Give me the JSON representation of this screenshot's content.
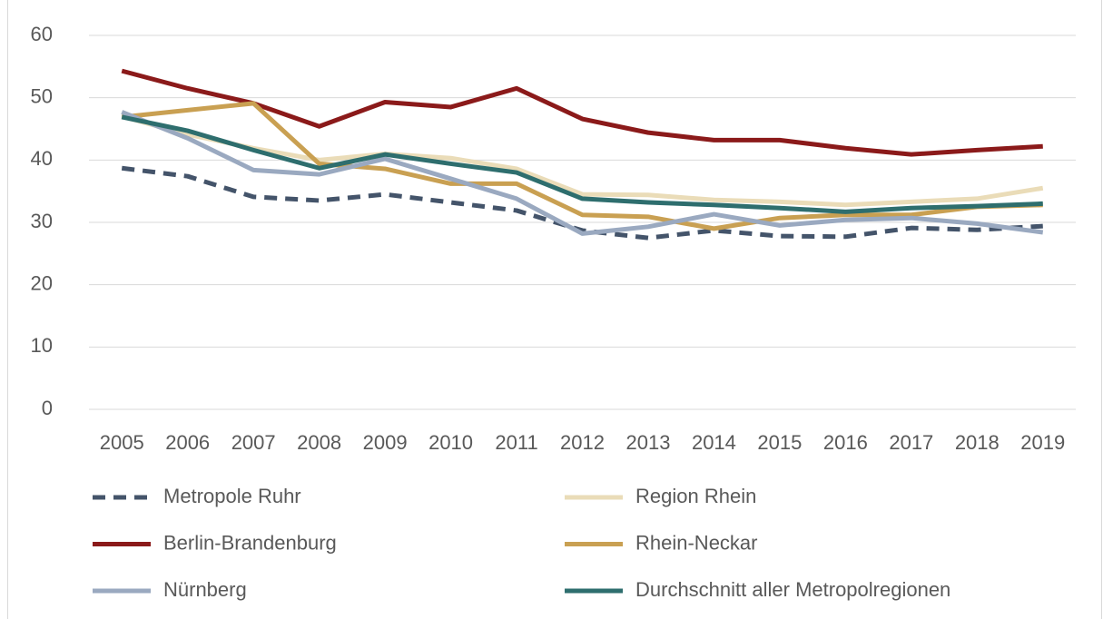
{
  "chart_data": {
    "type": "line",
    "categories": [
      "2005",
      "2006",
      "2007",
      "2008",
      "2009",
      "2010",
      "2011",
      "2012",
      "2013",
      "2014",
      "2015",
      "2016",
      "2017",
      "2018",
      "2019"
    ],
    "series": [
      {
        "name": "Metropole Ruhr",
        "color": "#44546a",
        "dash": true,
        "values": [
          38.7,
          37.4,
          34.1,
          33.5,
          34.5,
          33.2,
          31.9,
          28.7,
          27.5,
          28.7,
          27.8,
          27.7,
          29.1,
          28.8,
          29.4
        ]
      },
      {
        "name": "Region Rhein",
        "color": "#eadcb8",
        "values": [
          47.0,
          44.1,
          41.9,
          40.0,
          41.0,
          40.3,
          38.6,
          34.5,
          34.4,
          33.6,
          33.3,
          32.8,
          33.3,
          33.8,
          35.5
        ]
      },
      {
        "name": "Berlin-Brandenburg",
        "color": "#8b1a1a",
        "values": [
          54.3,
          51.5,
          49.1,
          45.4,
          49.3,
          48.5,
          51.5,
          46.6,
          44.4,
          43.2,
          43.2,
          41.9,
          40.9,
          41.6,
          42.2
        ]
      },
      {
        "name": "Rhein-Neckar",
        "color": "#c9a052",
        "values": [
          46.9,
          48.0,
          49.1,
          39.4,
          38.6,
          36.2,
          36.2,
          31.2,
          30.9,
          29.0,
          30.7,
          31.2,
          31.2,
          32.5,
          32.8
        ]
      },
      {
        "name": "Nürnberg",
        "color": "#9aa9c0",
        "values": [
          47.7,
          43.5,
          38.4,
          37.7,
          40.2,
          37.0,
          33.8,
          28.2,
          29.3,
          31.3,
          29.5,
          30.4,
          30.7,
          29.8,
          28.4
        ]
      },
      {
        "name": "Durchschnitt aller Metropolregionen",
        "color": "#2e6e6e",
        "values": [
          46.9,
          44.7,
          41.6,
          38.7,
          40.9,
          39.4,
          38.0,
          33.8,
          33.2,
          32.8,
          32.3,
          31.7,
          32.3,
          32.6,
          33.0
        ]
      }
    ],
    "ylim": [
      0,
      60
    ],
    "yticks": [
      0,
      10,
      20,
      30,
      40,
      50,
      60
    ],
    "grid": true,
    "legend": "bottom"
  }
}
